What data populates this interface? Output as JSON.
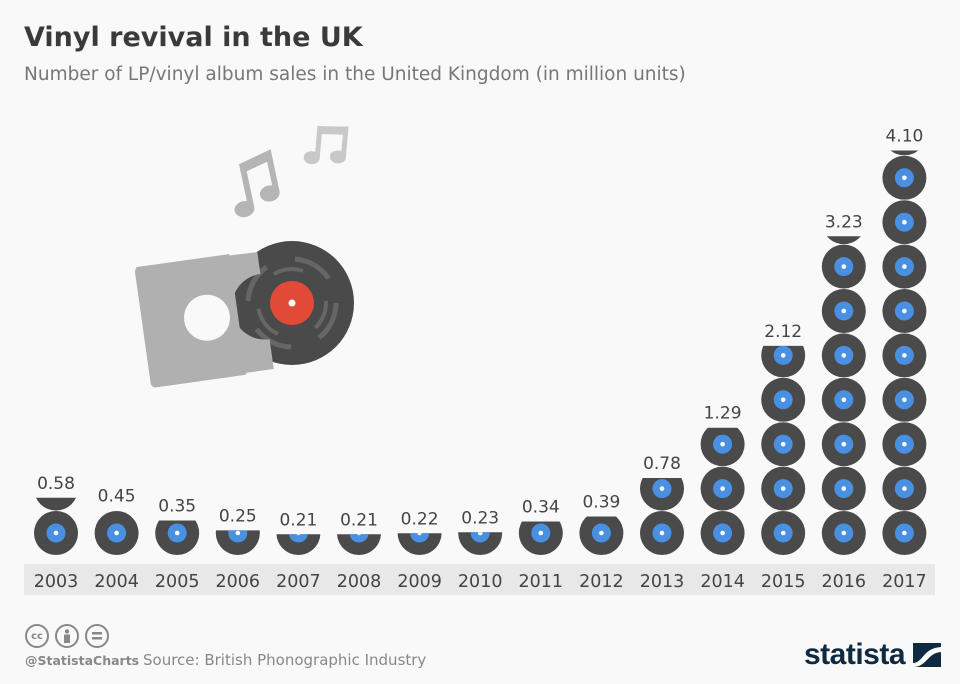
{
  "header": {
    "title": "Vinyl revival in the UK",
    "subtitle": "Number of LP/vinyl album sales in the United Kingdom (in million units)"
  },
  "chart_data": {
    "type": "bar",
    "style": "pictogram",
    "title": "Vinyl revival in the UK",
    "subtitle": "Number of LP/vinyl album sales in the United Kingdom (in million units)",
    "xlabel": "",
    "ylabel": "million units",
    "unit_per_icon": 0.45,
    "categories": [
      "2003",
      "2004",
      "2005",
      "2006",
      "2007",
      "2008",
      "2009",
      "2010",
      "2011",
      "2012",
      "2013",
      "2014",
      "2015",
      "2016",
      "2017"
    ],
    "values": [
      0.58,
      0.45,
      0.35,
      0.25,
      0.21,
      0.21,
      0.22,
      0.23,
      0.34,
      0.39,
      0.78,
      1.29,
      2.12,
      3.23,
      4.1
    ],
    "value_labels": [
      "0.58",
      "0.45",
      "0.35",
      "0.25",
      "0.21",
      "0.21",
      "0.22",
      "0.23",
      "0.34",
      "0.39",
      "0.78",
      "1.29",
      "2.12",
      "3.23",
      "4.10"
    ],
    "colors": {
      "disc": "#4a4a4a",
      "label": "#4a90e2",
      "band": "#e8e8e8",
      "text": "#444444"
    }
  },
  "footer": {
    "license_icons": [
      "cc-icon",
      "attribution-icon",
      "no-derivatives-icon"
    ],
    "cc_text": "cc",
    "handle": "@StatistaCharts",
    "source": "Source: British Phonographic Industry",
    "logo": "statista"
  }
}
